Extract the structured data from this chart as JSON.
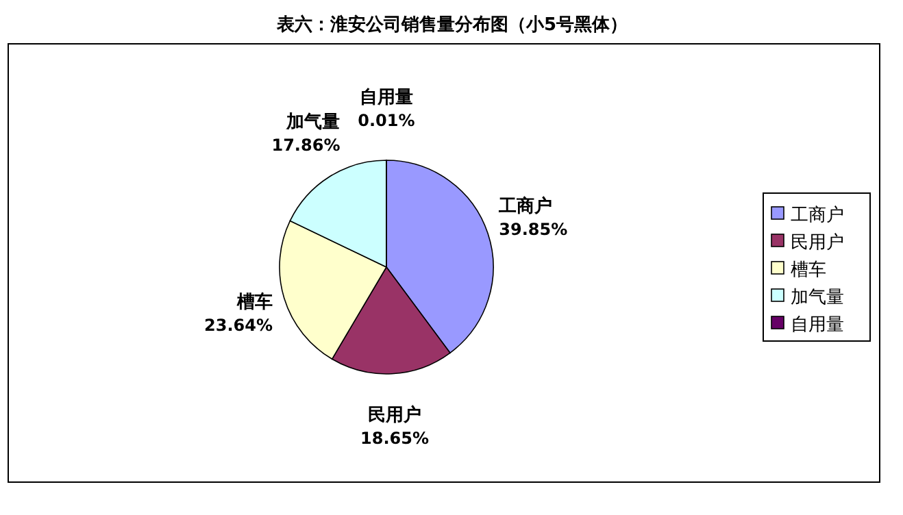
{
  "chart_data": {
    "type": "pie",
    "title": "表六：淮安公司销售量分布图（小5号黑体）",
    "categories": [
      "工商户",
      "民用户",
      "槽车",
      "加气量",
      "自用量"
    ],
    "values": [
      39.85,
      18.65,
      23.64,
      17.86,
      0.01
    ],
    "value_labels": [
      "39.85%",
      "18.65%",
      "23.64%",
      "17.86%",
      "0.01%"
    ],
    "colors": [
      "#9999ff",
      "#993366",
      "#ffffcc",
      "#ccffff",
      "#660066"
    ],
    "legend": "right"
  }
}
